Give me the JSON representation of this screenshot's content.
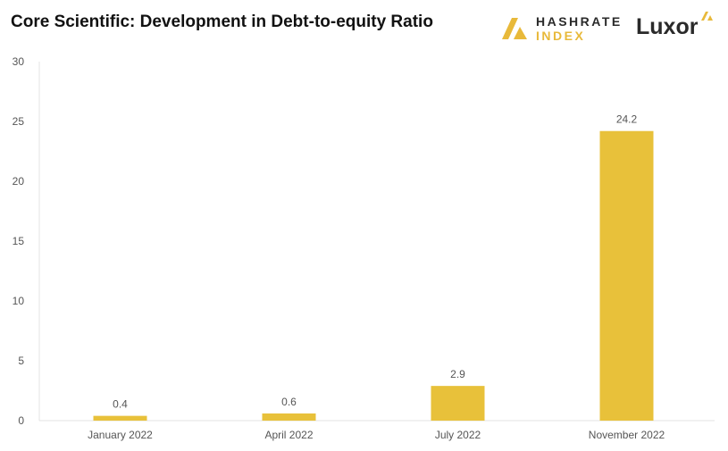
{
  "header": {
    "title": "Core Scientific: Development in Debt-to-equity Ratio"
  },
  "logos": {
    "hashrate_line1": "HASHRATE",
    "hashrate_line2": "INDEX",
    "luxor": "Luxor"
  },
  "colors": {
    "bar": "#e8c13a",
    "accent": "#e8b93a"
  },
  "chart_data": {
    "type": "bar",
    "title": "Core Scientific: Development in Debt-to-equity Ratio",
    "xlabel": "",
    "ylabel": "",
    "categories": [
      "January 2022",
      "April 2022",
      "July 2022",
      "November 2022"
    ],
    "values": [
      0.4,
      0.6,
      2.9,
      24.2
    ],
    "data_labels": [
      "0.4",
      "0.6",
      "2.9",
      "24.2"
    ],
    "ylim": [
      0,
      30
    ],
    "yticks": [
      0,
      5,
      10,
      15,
      20,
      25,
      30
    ],
    "grid": false,
    "legend": "none"
  }
}
